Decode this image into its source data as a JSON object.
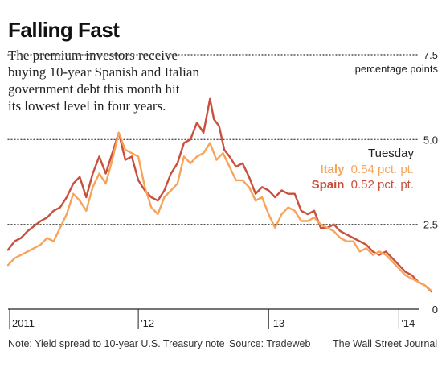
{
  "title": "Falling Fast",
  "subtitle": [
    "The premium investors receive",
    "buying 10-year Spanish and Italian",
    "government debt this month hit",
    "its lowest level in four years."
  ],
  "legend": {
    "heading": "Tuesday",
    "italy_name": "Italy",
    "italy_value": "0.54 pct. pt.",
    "spain_name": "Spain",
    "spain_value": "0.52 pct. pt."
  },
  "note": "Note: Yield spread to 10-year U.S. Treasury note",
  "source": "Source: Tradeweb",
  "credit": "The Wall Street Journal",
  "colors": {
    "italy": "#f7a45a",
    "spain": "#c8503c",
    "text": "#222222",
    "grid": "#555555"
  },
  "chart_data": {
    "type": "line",
    "ylabel": "percentage points",
    "ylim": [
      0,
      7.5
    ],
    "yticks": [
      {
        "value": 7.5,
        "label": "7.5"
      },
      {
        "value": 5.0,
        "label": "5.0"
      },
      {
        "value": 2.5,
        "label": "2.5"
      },
      {
        "value": 0,
        "label": "0"
      }
    ],
    "xlim": [
      2011.0,
      2014.3
    ],
    "xticks": [
      {
        "value": 2011.0,
        "label": "2011"
      },
      {
        "value": 2012.0,
        "label": "'12"
      },
      {
        "value": 2013.0,
        "label": "'13"
      },
      {
        "value": 2014.0,
        "label": "'14"
      }
    ],
    "series": [
      {
        "name": "Spain",
        "color": "#c8503c",
        "points": [
          [
            2011.0,
            1.75
          ],
          [
            2011.05,
            2.0
          ],
          [
            2011.1,
            2.1
          ],
          [
            2011.15,
            2.3
          ],
          [
            2011.2,
            2.45
          ],
          [
            2011.25,
            2.6
          ],
          [
            2011.3,
            2.7
          ],
          [
            2011.35,
            2.9
          ],
          [
            2011.4,
            3.0
          ],
          [
            2011.45,
            3.3
          ],
          [
            2011.5,
            3.7
          ],
          [
            2011.55,
            3.9
          ],
          [
            2011.6,
            3.3
          ],
          [
            2011.65,
            4.0
          ],
          [
            2011.7,
            4.5
          ],
          [
            2011.75,
            4.0
          ],
          [
            2011.8,
            4.6
          ],
          [
            2011.85,
            5.2
          ],
          [
            2011.9,
            4.4
          ],
          [
            2011.95,
            4.5
          ],
          [
            2012.0,
            3.8
          ],
          [
            2012.05,
            3.5
          ],
          [
            2012.1,
            3.3
          ],
          [
            2012.15,
            3.2
          ],
          [
            2012.2,
            3.5
          ],
          [
            2012.25,
            4.0
          ],
          [
            2012.3,
            4.3
          ],
          [
            2012.35,
            4.9
          ],
          [
            2012.4,
            5.0
          ],
          [
            2012.45,
            5.5
          ],
          [
            2012.5,
            5.2
          ],
          [
            2012.55,
            6.2
          ],
          [
            2012.58,
            5.6
          ],
          [
            2012.62,
            5.4
          ],
          [
            2012.66,
            4.7
          ],
          [
            2012.7,
            4.5
          ],
          [
            2012.75,
            4.2
          ],
          [
            2012.8,
            4.3
          ],
          [
            2012.85,
            3.9
          ],
          [
            2012.9,
            3.4
          ],
          [
            2012.95,
            3.6
          ],
          [
            2013.0,
            3.5
          ],
          [
            2013.05,
            3.3
          ],
          [
            2013.1,
            3.5
          ],
          [
            2013.15,
            3.4
          ],
          [
            2013.2,
            3.4
          ],
          [
            2013.25,
            2.9
          ],
          [
            2013.3,
            2.8
          ],
          [
            2013.35,
            2.9
          ],
          [
            2013.4,
            2.4
          ],
          [
            2013.45,
            2.4
          ],
          [
            2013.5,
            2.5
          ],
          [
            2013.55,
            2.3
          ],
          [
            2013.6,
            2.2
          ],
          [
            2013.65,
            2.1
          ],
          [
            2013.7,
            2.0
          ],
          [
            2013.75,
            1.9
          ],
          [
            2013.8,
            1.7
          ],
          [
            2013.85,
            1.6
          ],
          [
            2013.9,
            1.7
          ],
          [
            2013.95,
            1.5
          ],
          [
            2014.0,
            1.3
          ],
          [
            2014.05,
            1.1
          ],
          [
            2014.1,
            1.0
          ],
          [
            2014.15,
            0.8
          ],
          [
            2014.2,
            0.7
          ],
          [
            2014.25,
            0.52
          ]
        ]
      },
      {
        "name": "Italy",
        "color": "#f7a45a",
        "points": [
          [
            2011.0,
            1.3
          ],
          [
            2011.05,
            1.5
          ],
          [
            2011.1,
            1.6
          ],
          [
            2011.15,
            1.7
          ],
          [
            2011.2,
            1.8
          ],
          [
            2011.25,
            1.9
          ],
          [
            2011.3,
            2.1
          ],
          [
            2011.35,
            2.0
          ],
          [
            2011.4,
            2.4
          ],
          [
            2011.45,
            2.8
          ],
          [
            2011.5,
            3.4
          ],
          [
            2011.55,
            3.2
          ],
          [
            2011.6,
            2.9
          ],
          [
            2011.65,
            3.6
          ],
          [
            2011.7,
            4.0
          ],
          [
            2011.75,
            3.7
          ],
          [
            2011.8,
            4.4
          ],
          [
            2011.85,
            5.2
          ],
          [
            2011.9,
            4.7
          ],
          [
            2011.95,
            4.6
          ],
          [
            2012.0,
            4.5
          ],
          [
            2012.05,
            3.6
          ],
          [
            2012.1,
            3.0
          ],
          [
            2012.15,
            2.8
          ],
          [
            2012.2,
            3.3
          ],
          [
            2012.25,
            3.5
          ],
          [
            2012.3,
            3.7
          ],
          [
            2012.35,
            4.5
          ],
          [
            2012.4,
            4.3
          ],
          [
            2012.45,
            4.5
          ],
          [
            2012.5,
            4.6
          ],
          [
            2012.55,
            4.9
          ],
          [
            2012.6,
            4.4
          ],
          [
            2012.65,
            4.6
          ],
          [
            2012.7,
            4.2
          ],
          [
            2012.75,
            3.8
          ],
          [
            2012.8,
            3.8
          ],
          [
            2012.85,
            3.6
          ],
          [
            2012.9,
            3.2
          ],
          [
            2012.95,
            3.3
          ],
          [
            2013.0,
            2.8
          ],
          [
            2013.05,
            2.4
          ],
          [
            2013.1,
            2.8
          ],
          [
            2013.15,
            3.0
          ],
          [
            2013.2,
            2.9
          ],
          [
            2013.25,
            2.6
          ],
          [
            2013.3,
            2.6
          ],
          [
            2013.35,
            2.7
          ],
          [
            2013.4,
            2.5
          ],
          [
            2013.45,
            2.4
          ],
          [
            2013.5,
            2.3
          ],
          [
            2013.55,
            2.1
          ],
          [
            2013.6,
            2.0
          ],
          [
            2013.65,
            2.0
          ],
          [
            2013.7,
            1.7
          ],
          [
            2013.75,
            1.8
          ],
          [
            2013.8,
            1.6
          ],
          [
            2013.85,
            1.7
          ],
          [
            2013.9,
            1.6
          ],
          [
            2013.95,
            1.4
          ],
          [
            2014.0,
            1.2
          ],
          [
            2014.05,
            1.0
          ],
          [
            2014.1,
            0.9
          ],
          [
            2014.15,
            0.8
          ],
          [
            2014.2,
            0.7
          ],
          [
            2014.25,
            0.54
          ]
        ]
      }
    ]
  }
}
